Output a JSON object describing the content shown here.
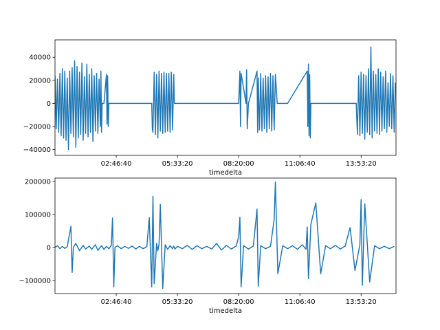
{
  "chart_data": [
    {
      "type": "line",
      "title": "",
      "xlabel": "timedelta",
      "ylabel": "",
      "color": "#1f77b4",
      "xlim": [
        0,
        55700
      ],
      "ylim": [
        -45000,
        55000
      ],
      "x_ticks": [
        {
          "value": 10000,
          "label": "02:46:40"
        },
        {
          "value": 20000,
          "label": "05:33:20"
        },
        {
          "value": 30000,
          "label": "08:20:00"
        },
        {
          "value": 40000,
          "label": "11:06:40"
        },
        {
          "value": 50000,
          "label": "13:53:20"
        }
      ],
      "y_ticks": [
        {
          "value": -40000,
          "label": "−40000"
        },
        {
          "value": -20000,
          "label": "−20000"
        },
        {
          "value": 0,
          "label": "0"
        },
        {
          "value": 20000,
          "label": "20000"
        },
        {
          "value": 40000,
          "label": "40000"
        }
      ],
      "series": [
        {
          "x": [
            0,
            200,
            400,
            600,
            800,
            1000,
            1200,
            1400,
            1600,
            1800,
            2000,
            2200,
            2400,
            2600,
            2800,
            3000,
            3200,
            3400,
            3600,
            3800,
            4000,
            4200,
            4400,
            4600,
            4800,
            5000,
            5200,
            5400,
            5600,
            5800,
            6000,
            6200,
            6400,
            6600,
            6800,
            7000,
            7200,
            7400,
            7500,
            7600,
            7700,
            8000,
            8400,
            8500,
            8600,
            8700,
            8800,
            9000,
            12000,
            15000,
            15800,
            15900,
            16000,
            16200,
            16400,
            16600,
            16800,
            17000,
            17200,
            17400,
            17600,
            17800,
            18000,
            18200,
            18400,
            18600,
            18800,
            19000,
            19200,
            19400,
            19500,
            22000,
            25000,
            30000,
            30200,
            30300,
            30400,
            31200,
            31300,
            31400,
            31600,
            33000,
            33100,
            33200,
            33400,
            33600,
            33800,
            34000,
            34200,
            34400,
            34600,
            34800,
            35000,
            35200,
            35400,
            35600,
            35800,
            36000,
            36300,
            38000,
            41200,
            41300,
            41400,
            41500,
            41600,
            41700,
            41800,
            42000,
            44000,
            48000,
            49200,
            49400,
            49600,
            49800,
            50000,
            50200,
            50400,
            50600,
            50800,
            51000,
            51200,
            51400,
            51600,
            51800,
            52000,
            52200,
            52400,
            52600,
            52800,
            53000,
            53200,
            53400,
            53600,
            53800,
            54000,
            54200,
            54400,
            54600,
            54800,
            55000,
            55200,
            55400,
            55600
          ],
          "y": [
            24000,
            -22000,
            21000,
            -25000,
            26000,
            -28000,
            30000,
            -30000,
            28000,
            -32000,
            22000,
            -40000,
            28000,
            -26000,
            31000,
            -29000,
            37000,
            -38000,
            32000,
            -30000,
            27000,
            -27000,
            35000,
            -32000,
            23000,
            -26000,
            34000,
            -29000,
            25000,
            -25000,
            30000,
            -33000,
            24000,
            -24000,
            26000,
            -26000,
            21000,
            -20000,
            28000,
            -25000,
            0,
            0,
            25000,
            -18000,
            24000,
            -20000,
            0,
            0,
            0,
            0,
            0,
            -22000,
            -25000,
            27000,
            -27000,
            25000,
            -30000,
            28000,
            -24000,
            26000,
            -26000,
            27000,
            -25000,
            26000,
            -24000,
            26000,
            -25000,
            27000,
            -23000,
            25000,
            0,
            0,
            0,
            0,
            28000,
            -20000,
            26000,
            0,
            29000,
            -22000,
            0,
            28000,
            -25000,
            22000,
            -23000,
            26000,
            -24000,
            22000,
            -22000,
            24000,
            -25000,
            23000,
            -22000,
            26000,
            -24000,
            24000,
            -23000,
            25000,
            0,
            0,
            28000,
            -20000,
            34000,
            -28000,
            25000,
            -30000,
            0,
            0,
            0,
            0,
            0,
            -27000,
            24000,
            -28000,
            27000,
            -26000,
            25000,
            -31000,
            24000,
            -25000,
            30000,
            -27000,
            49000,
            -30000,
            28000,
            -24000,
            25000,
            -26000,
            30000,
            -27000,
            27000,
            -24000,
            23000,
            -22000,
            28000,
            -25000,
            18000,
            -20000,
            26000,
            -22000,
            24000,
            -25000,
            18000
          ]
        }
      ]
    },
    {
      "type": "line",
      "title": "",
      "xlabel": "timedelta",
      "ylabel": "",
      "color": "#1f77b4",
      "xlim": [
        0,
        55700
      ],
      "ylim": [
        -140000,
        210000
      ],
      "x_ticks": [
        {
          "value": 10000,
          "label": "02:46:40"
        },
        {
          "value": 20000,
          "label": "05:33:20"
        },
        {
          "value": 30000,
          "label": "08:20:00"
        },
        {
          "value": 40000,
          "label": "11:06:40"
        },
        {
          "value": 50000,
          "label": "13:53:20"
        }
      ],
      "y_ticks": [
        {
          "value": -100000,
          "label": "−100000"
        },
        {
          "value": 0,
          "label": "0"
        },
        {
          "value": 100000,
          "label": "100000"
        },
        {
          "value": 200000,
          "label": "200000"
        }
      ],
      "series": [
        {
          "x": [
            0,
            400,
            800,
            1200,
            1600,
            2000,
            2600,
            2800,
            3000,
            3400,
            4000,
            4600,
            5000,
            5600,
            6000,
            6600,
            7000,
            7600,
            8000,
            8400,
            8800,
            9200,
            9400,
            9600,
            9800,
            10200,
            10800,
            11400,
            12000,
            12600,
            13200,
            13800,
            14400,
            15000,
            15400,
            15800,
            16000,
            16200,
            16600,
            16800,
            17000,
            17200,
            17600,
            18000,
            18400,
            18800,
            19200,
            19400,
            19600,
            20000,
            20800,
            21600,
            22400,
            23200,
            24000,
            24800,
            25600,
            26400,
            27200,
            28000,
            28800,
            29600,
            30000,
            30200,
            30400,
            30800,
            31600,
            32400,
            33000,
            33200,
            33600,
            34400,
            35200,
            35800,
            36000,
            36400,
            37200,
            38000,
            38800,
            39600,
            40400,
            41000,
            41200,
            41400,
            41800,
            42600,
            43400,
            44200,
            45000,
            45800,
            46600,
            47400,
            48200,
            49000,
            49800,
            50000,
            50200,
            50600,
            51400,
            52200,
            53000,
            53800,
            54600,
            55400
          ],
          "y": [
            0,
            5000,
            -4000,
            3000,
            -3000,
            2000,
            64000,
            -76000,
            0,
            12000,
            -10000,
            6000,
            -5000,
            4000,
            -6000,
            8000,
            -9000,
            5000,
            -6000,
            3000,
            -4000,
            6000,
            89000,
            -120000,
            0,
            5000,
            -4000,
            3000,
            -3000,
            4000,
            -5000,
            3000,
            -4000,
            2000,
            90000,
            -120000,
            155000,
            -110000,
            12000,
            -10000,
            10000,
            130000,
            -125000,
            8000,
            -6000,
            5000,
            -4000,
            4000,
            -5000,
            3000,
            -4000,
            6000,
            -6000,
            5000,
            -4000,
            3000,
            -5000,
            12000,
            -8000,
            6000,
            -5000,
            4000,
            32000,
            91000,
            -120000,
            5000,
            -5000,
            4000,
            116000,
            -118000,
            5000,
            -4000,
            3000,
            85000,
            198000,
            -80000,
            5000,
            -4000,
            5000,
            -6000,
            8000,
            -6000,
            62000,
            -95000,
            70000,
            135000,
            -80000,
            5000,
            -4000,
            6000,
            -5000,
            4000,
            60000,
            -70000,
            8000,
            145000,
            -115000,
            132000,
            -105000,
            5000,
            -4000,
            3000,
            -4000,
            3000
          ]
        }
      ]
    }
  ]
}
